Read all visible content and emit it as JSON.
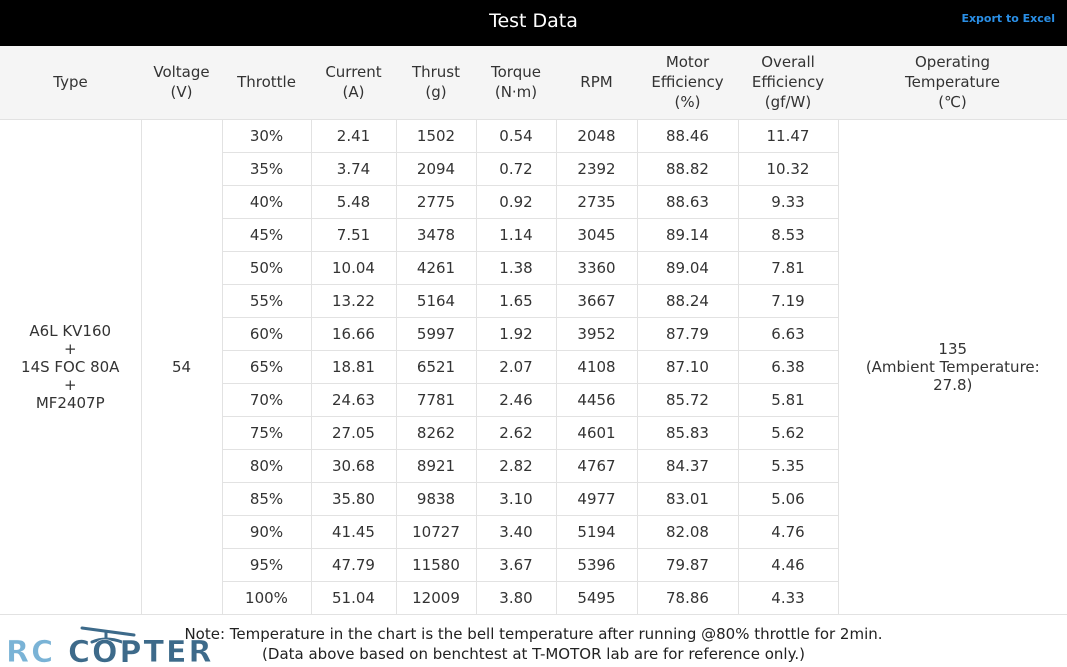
{
  "header": {
    "title": "Test Data",
    "export_label": "Export to Excel"
  },
  "table": {
    "columns": [
      {
        "lines": [
          "Type"
        ]
      },
      {
        "lines": [
          "Voltage",
          "(V)"
        ]
      },
      {
        "lines": [
          "Throttle"
        ]
      },
      {
        "lines": [
          "Current",
          "(A)"
        ]
      },
      {
        "lines": [
          "Thrust",
          "(g)"
        ]
      },
      {
        "lines": [
          "Torque",
          "(N·m)"
        ]
      },
      {
        "lines": [
          "RPM"
        ]
      },
      {
        "lines": [
          "Motor",
          "Efficiency",
          "(%)"
        ]
      },
      {
        "lines": [
          "Overall",
          "Efficiency",
          "(gf/W)"
        ]
      },
      {
        "lines": [
          "Operating",
          "Temperature",
          "(℃)"
        ]
      }
    ],
    "type_lines": [
      "A6L KV160",
      "+",
      "14S FOC 80A",
      "+",
      "MF2407P"
    ],
    "voltage": "54",
    "temperature_lines": [
      "135",
      "(Ambient Temperature:",
      "27.8)"
    ],
    "rows": [
      [
        "30%",
        "2.41",
        "1502",
        "0.54",
        "2048",
        "88.46",
        "11.47"
      ],
      [
        "35%",
        "3.74",
        "2094",
        "0.72",
        "2392",
        "88.82",
        "10.32"
      ],
      [
        "40%",
        "5.48",
        "2775",
        "0.92",
        "2735",
        "88.63",
        "9.33"
      ],
      [
        "45%",
        "7.51",
        "3478",
        "1.14",
        "3045",
        "89.14",
        "8.53"
      ],
      [
        "50%",
        "10.04",
        "4261",
        "1.38",
        "3360",
        "89.04",
        "7.81"
      ],
      [
        "55%",
        "13.22",
        "5164",
        "1.65",
        "3667",
        "88.24",
        "7.19"
      ],
      [
        "60%",
        "16.66",
        "5997",
        "1.92",
        "3952",
        "87.79",
        "6.63"
      ],
      [
        "65%",
        "18.81",
        "6521",
        "2.07",
        "4108",
        "87.10",
        "6.38"
      ],
      [
        "70%",
        "24.63",
        "7781",
        "2.46",
        "4456",
        "85.72",
        "5.81"
      ],
      [
        "75%",
        "27.05",
        "8262",
        "2.62",
        "4601",
        "85.83",
        "5.62"
      ],
      [
        "80%",
        "30.68",
        "8921",
        "2.82",
        "4767",
        "84.37",
        "5.35"
      ],
      [
        "85%",
        "35.80",
        "9838",
        "3.10",
        "4977",
        "83.01",
        "5.06"
      ],
      [
        "90%",
        "41.45",
        "10727",
        "3.40",
        "5194",
        "82.08",
        "4.76"
      ],
      [
        "95%",
        "47.79",
        "11580",
        "3.67",
        "5396",
        "79.87",
        "4.46"
      ],
      [
        "100%",
        "51.04",
        "12009",
        "3.80",
        "5495",
        "78.86",
        "4.33"
      ]
    ]
  },
  "note": {
    "line1": "Note: Temperature in the chart is the bell temperature after running @80% throttle for 2min.",
    "line2": "(Data above based on benchtest at T-MOTOR lab are for reference only.)"
  },
  "watermark": {
    "text": "RC COPTER",
    "colors": {
      "rc": "#7ab3d6",
      "copter": "#3d6a8a"
    }
  },
  "colors": {
    "header_bg": "#000000",
    "header_text": "#ffffff",
    "link": "#2a8fe6",
    "thead_bg": "#f5f5f5",
    "grid": "#e2e2e2"
  }
}
